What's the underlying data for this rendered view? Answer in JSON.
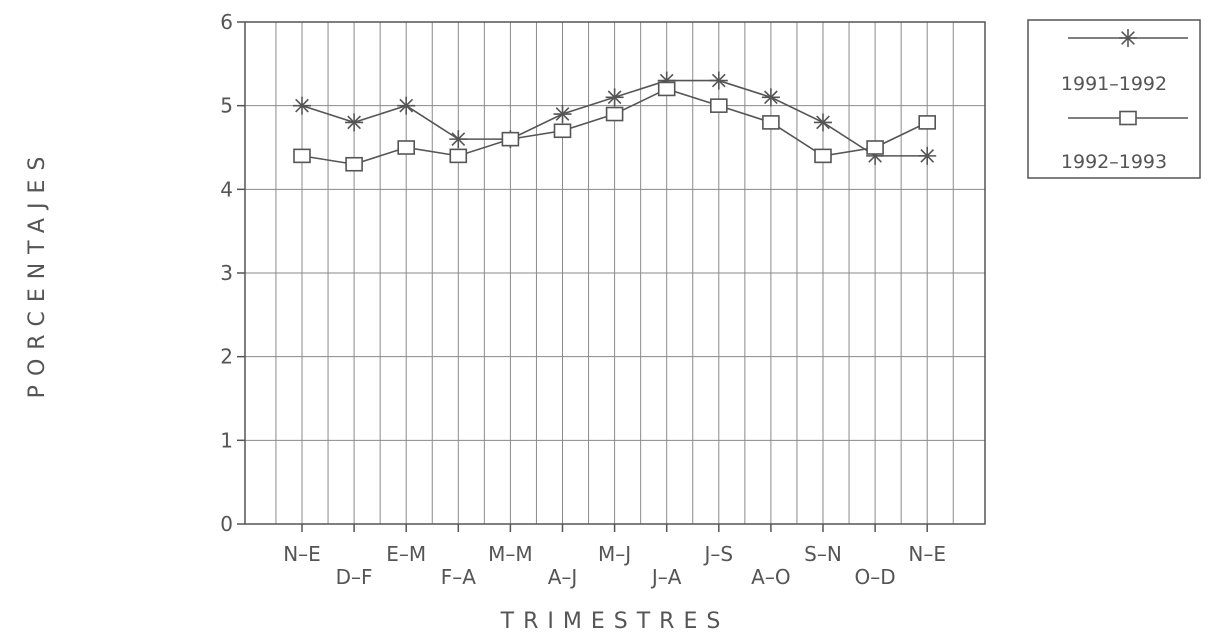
{
  "chart_data": {
    "type": "line",
    "xlabel": "TRIMESTRES",
    "ylabel": "PORCENTAJES",
    "ylim": [
      0,
      6
    ],
    "yticks": [
      "0",
      "1",
      "2",
      "3",
      "4",
      "5",
      "6"
    ],
    "categories": [
      "N–E",
      "D–F",
      "E–M",
      "F–A",
      "M–M",
      "A–J",
      "M–J",
      "J–A",
      "J–S",
      "A–O",
      "S–N",
      "O–D",
      "N–E"
    ],
    "grid": true,
    "legend_position": "top-right",
    "series": [
      {
        "name": "1991–1992",
        "marker": "asterisk",
        "values": [
          5.0,
          4.8,
          5.0,
          4.6,
          4.6,
          4.9,
          5.1,
          5.3,
          5.3,
          5.1,
          4.8,
          4.4,
          4.4
        ]
      },
      {
        "name": "1992–1993",
        "marker": "square",
        "values": [
          4.4,
          4.3,
          4.5,
          4.4,
          4.6,
          4.7,
          4.9,
          5.2,
          5.0,
          4.8,
          4.4,
          4.5,
          4.8
        ]
      }
    ]
  },
  "colors": {
    "line": "#555555",
    "grid": "#8a8a8a"
  }
}
